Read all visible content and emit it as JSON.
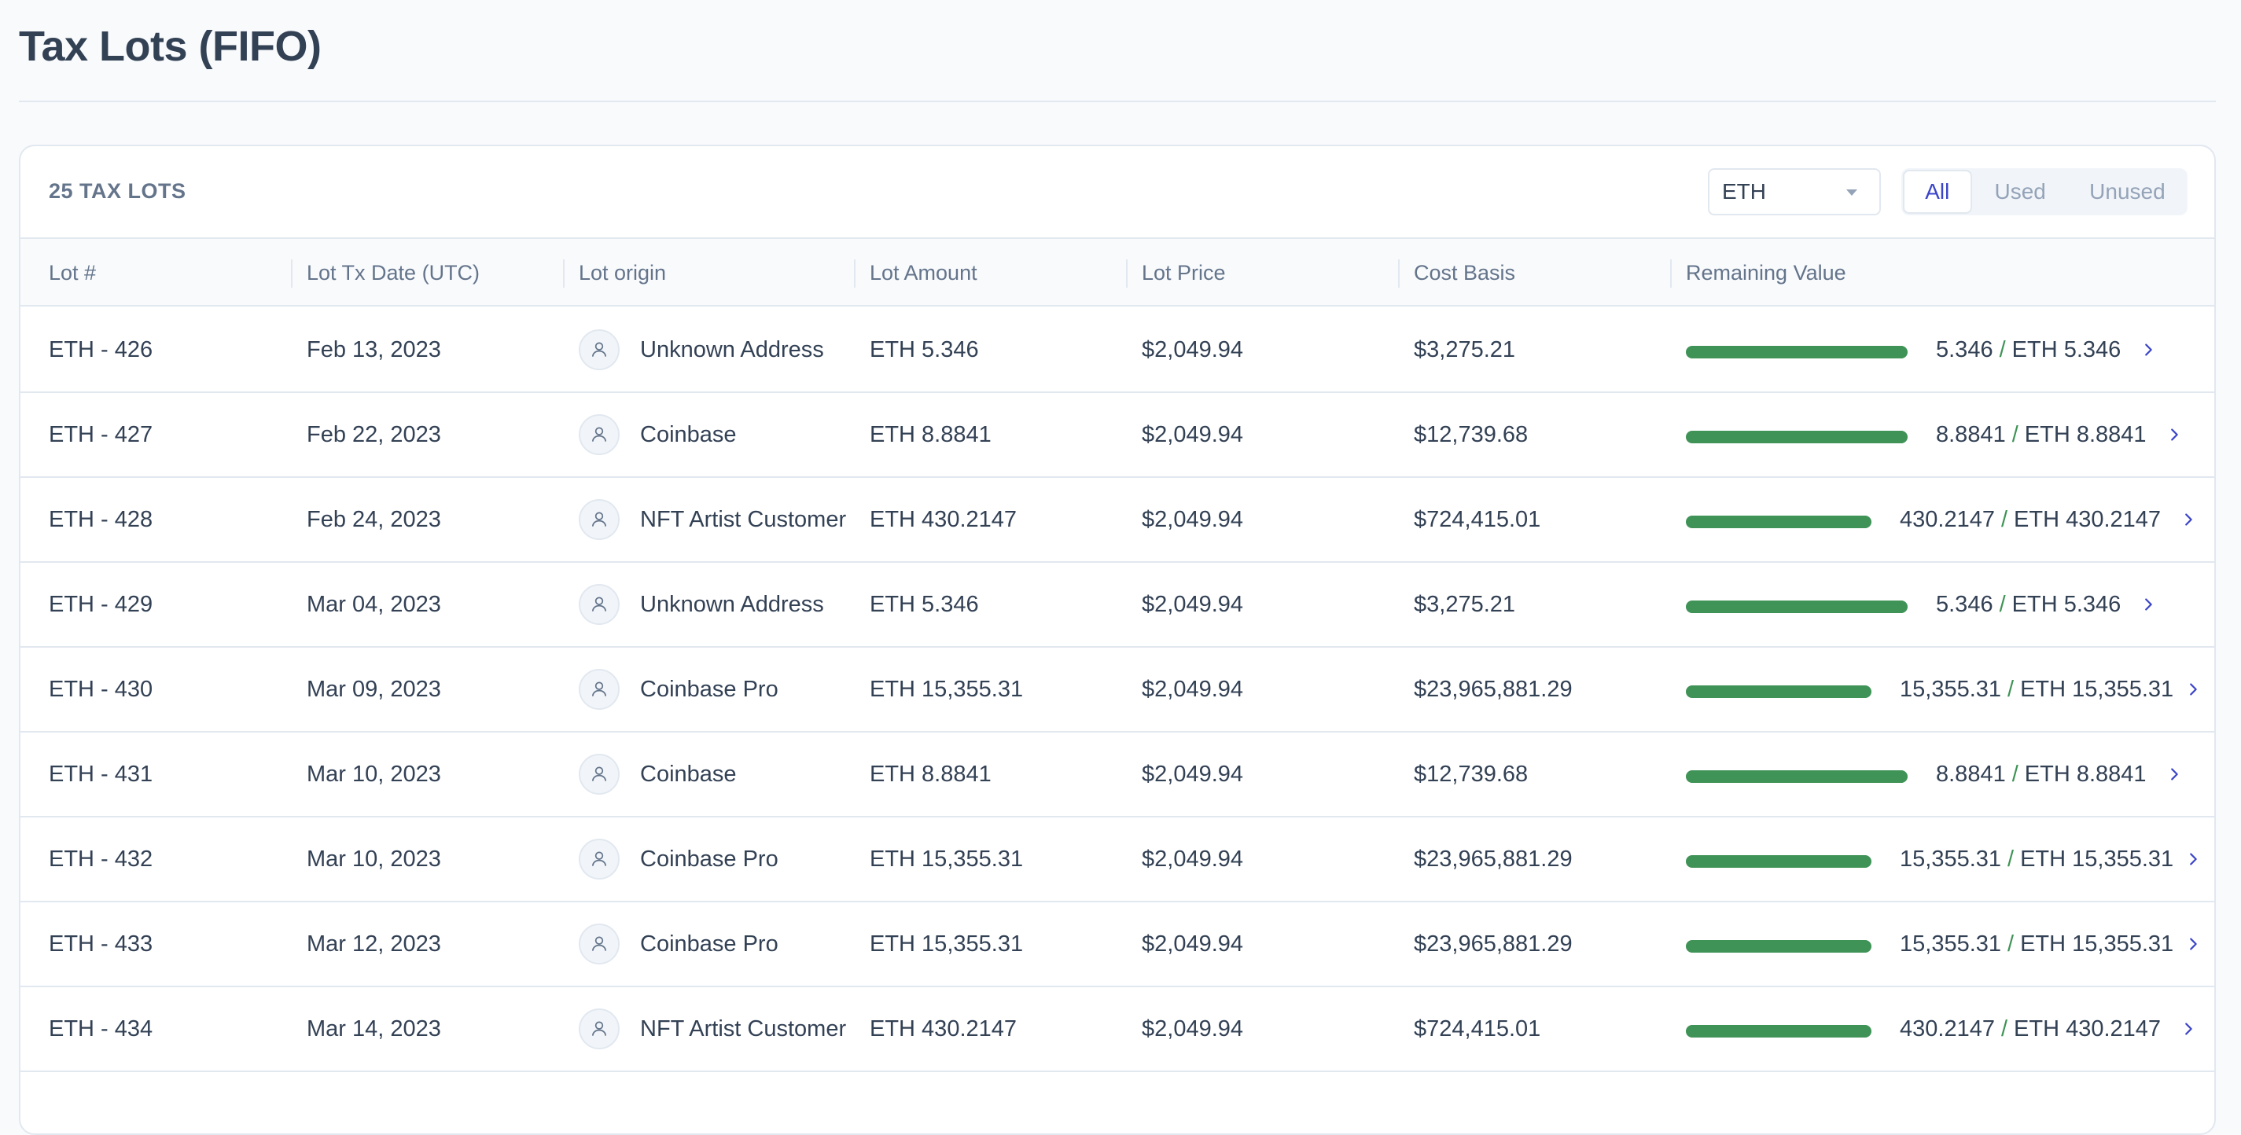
{
  "page": {
    "title": "Tax Lots (FIFO)"
  },
  "toolbar": {
    "count_label": "25 TAX LOTS",
    "asset_select": {
      "value": "ETH"
    },
    "filters": {
      "all": "All",
      "used": "Used",
      "unused": "Unused",
      "active": "All"
    }
  },
  "table": {
    "columns": {
      "lot": "Lot #",
      "date": "Lot Tx Date (UTC)",
      "origin": "Lot origin",
      "amount": "Lot Amount",
      "price": "Lot Price",
      "cost": "Cost Basis",
      "remaining": "Remaining Value"
    },
    "rows": [
      {
        "lot": "ETH - 426",
        "date": "Feb 13, 2023",
        "origin": "Unknown Address",
        "amount": "ETH 5.346",
        "price": "$2,049.94",
        "cost": "$3,275.21",
        "rem_used": "5.346",
        "rem_total": "ETH 5.346",
        "rem_fraction": 1.0
      },
      {
        "lot": "ETH - 427",
        "date": "Feb 22, 2023",
        "origin": "Coinbase",
        "amount": "ETH 8.8841",
        "price": "$2,049.94",
        "cost": "$12,739.68",
        "rem_used": "8.8841",
        "rem_total": "ETH 8.8841",
        "rem_fraction": 1.0
      },
      {
        "lot": "ETH - 428",
        "date": "Feb 24, 2023",
        "origin": "NFT Artist Customer",
        "amount": "ETH 430.2147",
        "price": "$2,049.94",
        "cost": "$724,415.01",
        "rem_used": "430.2147",
        "rem_total": "ETH 430.2147",
        "rem_fraction": 1.0
      },
      {
        "lot": "ETH - 429",
        "date": "Mar 04, 2023",
        "origin": "Unknown Address",
        "amount": "ETH 5.346",
        "price": "$2,049.94",
        "cost": "$3,275.21",
        "rem_used": "5.346",
        "rem_total": "ETH 5.346",
        "rem_fraction": 1.0
      },
      {
        "lot": "ETH - 430",
        "date": "Mar 09, 2023",
        "origin": "Coinbase Pro",
        "amount": "ETH 15,355.31",
        "price": "$2,049.94",
        "cost": "$23,965,881.29",
        "rem_used": "15,355.31",
        "rem_total": "ETH 15,355.31",
        "rem_fraction": 1.0
      },
      {
        "lot": "ETH - 431",
        "date": "Mar 10, 2023",
        "origin": "Coinbase",
        "amount": "ETH 8.8841",
        "price": "$2,049.94",
        "cost": "$12,739.68",
        "rem_used": "8.8841",
        "rem_total": "ETH 8.8841",
        "rem_fraction": 1.0
      },
      {
        "lot": "ETH - 432",
        "date": "Mar 10, 2023",
        "origin": "Coinbase Pro",
        "amount": "ETH 15,355.31",
        "price": "$2,049.94",
        "cost": "$23,965,881.29",
        "rem_used": "15,355.31",
        "rem_total": "ETH 15,355.31",
        "rem_fraction": 1.0
      },
      {
        "lot": "ETH - 433",
        "date": "Mar 12, 2023",
        "origin": "Coinbase Pro",
        "amount": "ETH 15,355.31",
        "price": "$2,049.94",
        "cost": "$23,965,881.29",
        "rem_used": "15,355.31",
        "rem_total": "ETH 15,355.31",
        "rem_fraction": 1.0
      },
      {
        "lot": "ETH - 434",
        "date": "Mar 14, 2023",
        "origin": "NFT Artist Customer",
        "amount": "ETH 430.2147",
        "price": "$2,049.94",
        "cost": "$724,415.01",
        "rem_used": "430.2147",
        "rem_total": "ETH 430.2147",
        "rem_fraction": 1.0
      }
    ]
  },
  "icons": {
    "origin_avatar": "user-icon",
    "row_action": "chevron-right-icon",
    "select_caret": "caret-down-icon"
  },
  "colors": {
    "accent": "#3b45c8",
    "progress": "#3f9356",
    "text": "#334155",
    "muted": "#64748b"
  }
}
